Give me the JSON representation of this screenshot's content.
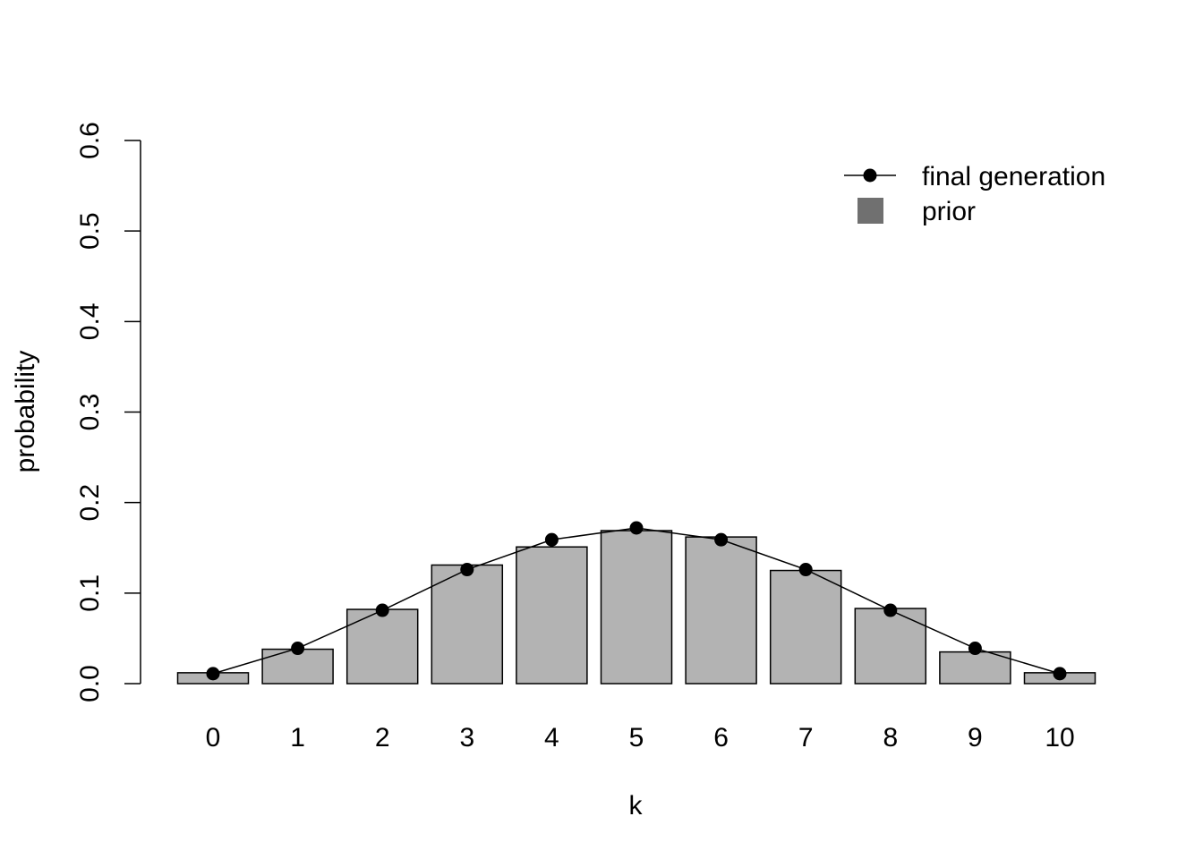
{
  "chart_data": {
    "type": "bar",
    "categories": [
      "0",
      "1",
      "2",
      "3",
      "4",
      "5",
      "6",
      "7",
      "8",
      "9",
      "10"
    ],
    "xlabel": "k",
    "ylabel": "probability",
    "ylim": [
      0,
      0.6
    ],
    "yticks": [
      "0.0",
      "0.1",
      "0.2",
      "0.3",
      "0.4",
      "0.5",
      "0.6"
    ],
    "legend_position": "top-right",
    "series": [
      {
        "name": "prior",
        "kind": "bar",
        "color": "#b3b3b3",
        "legend_color": "#707070",
        "values": [
          0.012,
          0.038,
          0.082,
          0.131,
          0.151,
          0.169,
          0.162,
          0.125,
          0.083,
          0.035,
          0.012
        ]
      },
      {
        "name": "final generation",
        "kind": "line",
        "color": "#000000",
        "values": [
          0.011,
          0.039,
          0.081,
          0.126,
          0.159,
          0.172,
          0.159,
          0.126,
          0.081,
          0.039,
          0.011
        ]
      }
    ]
  }
}
